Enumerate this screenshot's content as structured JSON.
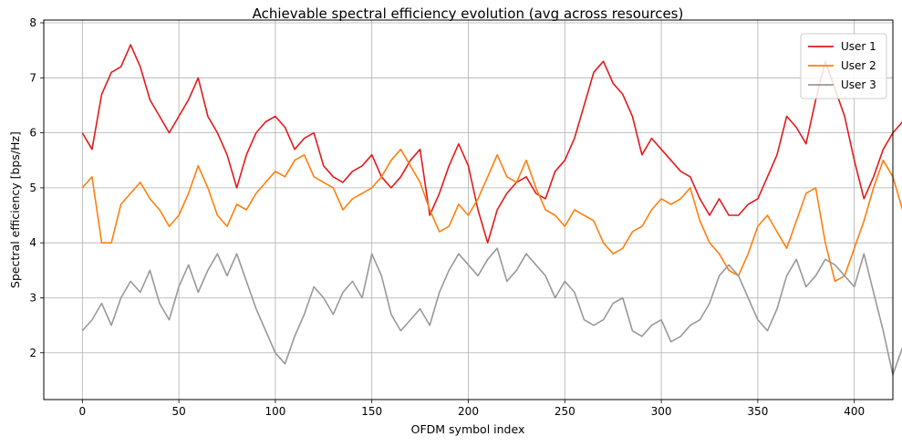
{
  "chart_data": {
    "type": "line",
    "title": "Achievable spectral efficiency evolution (avg across resources)",
    "xlabel": "OFDM symbol index",
    "ylabel": "Spectral efficiency [bps/Hz]",
    "xlim": [
      -20,
      420
    ],
    "ylim": [
      1.15,
      8.05
    ],
    "xticks": [
      0,
      50,
      100,
      150,
      200,
      250,
      300,
      350,
      400
    ],
    "yticks": [
      2,
      3,
      4,
      5,
      6,
      7,
      8
    ],
    "grid": true,
    "legend_position": "top-right",
    "x_step": 5,
    "series": [
      {
        "name": "User 1",
        "color": "#e31a1c",
        "values": [
          6.0,
          5.7,
          6.7,
          7.1,
          7.2,
          7.6,
          7.2,
          6.6,
          6.3,
          6.0,
          6.3,
          6.6,
          7.0,
          6.3,
          6.0,
          5.6,
          5.0,
          5.6,
          6.0,
          6.2,
          6.3,
          6.1,
          5.7,
          5.9,
          6.0,
          5.4,
          5.2,
          5.1,
          5.3,
          5.4,
          5.6,
          5.2,
          5.0,
          5.2,
          5.5,
          5.7,
          4.5,
          4.9,
          5.4,
          5.8,
          5.4,
          4.6,
          4.0,
          4.6,
          4.9,
          5.1,
          5.2,
          4.9,
          4.8,
          5.3,
          5.5,
          5.9,
          6.5,
          7.1,
          7.3,
          6.9,
          6.7,
          6.3,
          5.6,
          5.9,
          5.7,
          5.5,
          5.3,
          5.2,
          4.8,
          4.5,
          4.8,
          4.5,
          4.5,
          4.7,
          4.8,
          5.2,
          5.6,
          6.3,
          6.1,
          5.8,
          6.6,
          7.3,
          6.8,
          6.3,
          5.5,
          4.8,
          5.2,
          5.7,
          6.0,
          6.2
        ]
      },
      {
        "name": "User 2",
        "color": "#ff7f0e",
        "values": [
          5.0,
          5.2,
          4.0,
          4.0,
          4.7,
          4.9,
          5.1,
          4.8,
          4.6,
          4.3,
          4.5,
          4.9,
          5.4,
          5.0,
          4.5,
          4.3,
          4.7,
          4.6,
          4.9,
          5.1,
          5.3,
          5.2,
          5.5,
          5.6,
          5.2,
          5.1,
          5.0,
          4.6,
          4.8,
          4.9,
          5.0,
          5.2,
          5.5,
          5.7,
          5.4,
          5.1,
          4.6,
          4.2,
          4.3,
          4.7,
          4.5,
          4.8,
          5.2,
          5.6,
          5.2,
          5.1,
          5.5,
          5.0,
          4.6,
          4.5,
          4.3,
          4.6,
          4.5,
          4.4,
          4.0,
          3.8,
          3.9,
          4.2,
          4.3,
          4.6,
          4.8,
          4.7,
          4.8,
          5.0,
          4.4,
          4.0,
          3.8,
          3.5,
          3.4,
          3.8,
          4.3,
          4.5,
          4.2,
          3.9,
          4.4,
          4.9,
          5.0,
          4.0,
          3.3,
          3.4,
          3.9,
          4.4,
          5.0,
          5.5,
          5.2,
          4.6
        ]
      },
      {
        "name": "User 3",
        "color": "#999999",
        "values": [
          2.4,
          2.6,
          2.9,
          2.5,
          3.0,
          3.3,
          3.1,
          3.5,
          2.9,
          2.6,
          3.2,
          3.6,
          3.1,
          3.5,
          3.8,
          3.4,
          3.8,
          3.3,
          2.8,
          2.4,
          2.0,
          1.8,
          2.3,
          2.7,
          3.2,
          3.0,
          2.7,
          3.1,
          3.3,
          3.0,
          3.8,
          3.4,
          2.7,
          2.4,
          2.6,
          2.8,
          2.5,
          3.1,
          3.5,
          3.8,
          3.6,
          3.4,
          3.7,
          3.9,
          3.3,
          3.5,
          3.8,
          3.6,
          3.4,
          3.0,
          3.3,
          3.1,
          2.6,
          2.5,
          2.6,
          2.9,
          3.0,
          2.4,
          2.3,
          2.5,
          2.6,
          2.2,
          2.3,
          2.5,
          2.6,
          2.9,
          3.4,
          3.6,
          3.4,
          3.0,
          2.6,
          2.4,
          2.8,
          3.4,
          3.7,
          3.2,
          3.4,
          3.7,
          3.6,
          3.4,
          3.2,
          3.8,
          3.1,
          2.4,
          1.6,
          2.1
        ]
      }
    ]
  }
}
